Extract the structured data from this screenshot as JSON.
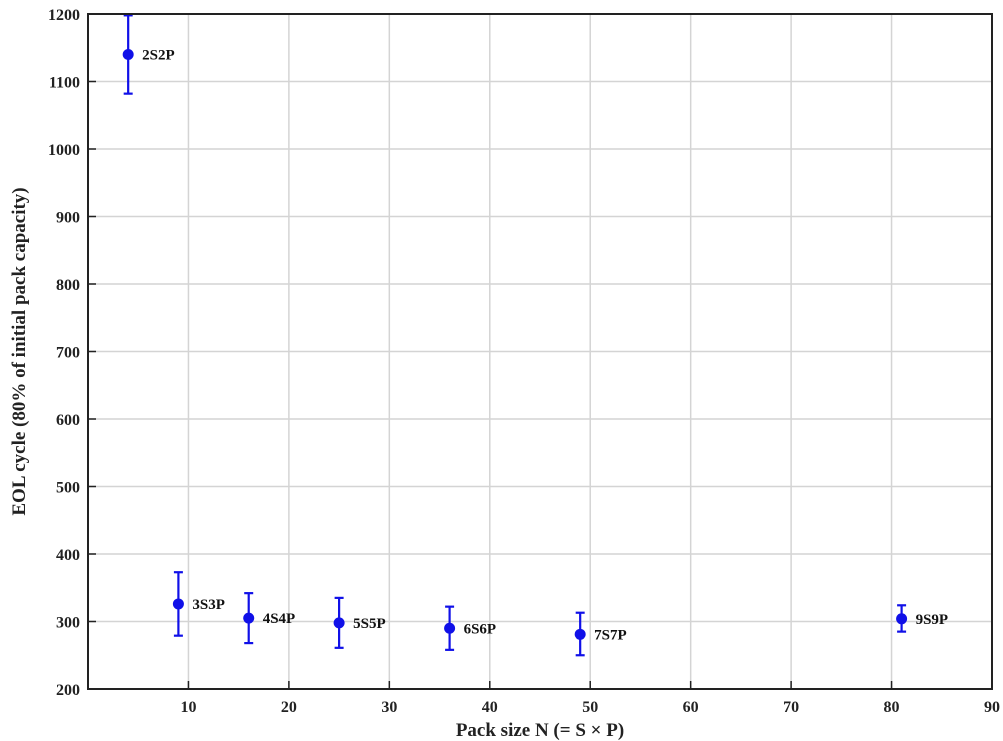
{
  "chart_data": {
    "type": "scatter",
    "title": "",
    "xlabel": "Pack size N (= S × P)",
    "ylabel": "EOL cycle (80% of initial pack capacity)",
    "xlim": [
      0,
      90
    ],
    "ylim": [
      200,
      1200
    ],
    "xticks": [
      10,
      20,
      30,
      40,
      50,
      60,
      70,
      80,
      90
    ],
    "yticks": [
      200,
      300,
      400,
      500,
      600,
      700,
      800,
      900,
      1000,
      1100,
      1200
    ],
    "grid": true,
    "marker_color": "#1010e8",
    "points": [
      {
        "label": "2S2P",
        "x": 4,
        "y": 1140,
        "err_low": 1082,
        "err_high": 1198
      },
      {
        "label": "3S3P",
        "x": 9,
        "y": 326,
        "err_low": 279,
        "err_high": 373
      },
      {
        "label": "4S4P",
        "x": 16,
        "y": 305,
        "err_low": 268,
        "err_high": 342
      },
      {
        "label": "5S5P",
        "x": 25,
        "y": 298,
        "err_low": 261,
        "err_high": 335
      },
      {
        "label": "6S6P",
        "x": 36,
        "y": 290,
        "err_low": 258,
        "err_high": 322
      },
      {
        "label": "7S7P",
        "x": 49,
        "y": 281,
        "err_low": 250,
        "err_high": 313
      },
      {
        "label": "9S9P",
        "x": 81,
        "y": 304,
        "err_low": 285,
        "err_high": 324
      }
    ]
  }
}
